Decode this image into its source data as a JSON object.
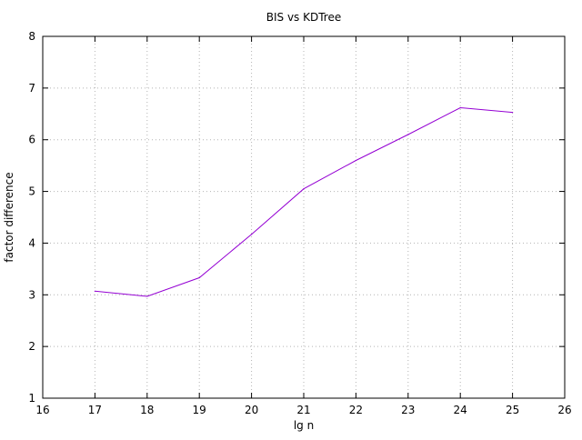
{
  "chart_data": {
    "type": "line",
    "title": "BIS vs KDTree",
    "xlabel": "lg n",
    "ylabel": "factor difference",
    "xlim": [
      16,
      26
    ],
    "ylim": [
      1,
      8
    ],
    "x_ticks": [
      16,
      17,
      18,
      19,
      20,
      21,
      22,
      23,
      24,
      25,
      26
    ],
    "y_ticks": [
      1,
      2,
      3,
      4,
      5,
      6,
      7,
      8
    ],
    "grid": true,
    "legend": "none",
    "series": [
      {
        "color": "#9400d3",
        "x": [
          17,
          18,
          19,
          20,
          21,
          22,
          23,
          24,
          25
        ],
        "y": [
          3.07,
          2.97,
          3.33,
          4.17,
          5.05,
          5.6,
          6.1,
          6.62,
          6.53
        ]
      }
    ],
    "colors": {
      "axis": "#000000",
      "grid": "#b4b4b4",
      "background": "#ffffff"
    }
  }
}
